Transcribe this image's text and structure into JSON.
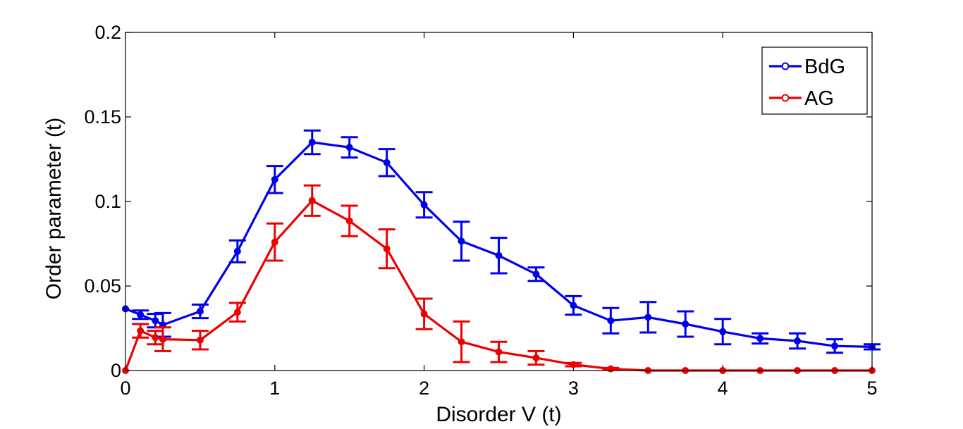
{
  "chart_data": {
    "type": "line",
    "title": "",
    "xlabel": "Disorder V (t)",
    "ylabel": "Order parameter (t)",
    "xlim": [
      0,
      5
    ],
    "ylim": [
      0,
      0.2
    ],
    "xticks": [
      0,
      1,
      2,
      3,
      4,
      5
    ],
    "xtick_labels": [
      "0",
      "1",
      "2",
      "3",
      "4",
      "5"
    ],
    "yticks": [
      0,
      0.05,
      0.1,
      0.15,
      0.2
    ],
    "ytick_labels": [
      "0",
      "0.05",
      "0.1",
      "0.15",
      "0.2"
    ],
    "grid": false,
    "legend_position": "top-right",
    "x": [
      0,
      0.1,
      0.2,
      0.25,
      0.5,
      0.75,
      1.0,
      1.25,
      1.5,
      1.75,
      2.0,
      2.25,
      2.5,
      2.75,
      3.0,
      3.25,
      3.5,
      3.75,
      4.0,
      4.25,
      4.5,
      4.75,
      5.0
    ],
    "series": [
      {
        "name": "BdG",
        "color": "#0000ee",
        "values": [
          0.0365,
          0.033,
          0.0295,
          0.027,
          0.035,
          0.0705,
          0.113,
          0.135,
          0.132,
          0.123,
          0.098,
          0.0765,
          0.068,
          0.057,
          0.0385,
          0.0295,
          0.0315,
          0.0275,
          0.023,
          0.019,
          0.0175,
          0.0145,
          0.014
        ],
        "errors": [
          0,
          0.0025,
          0.004,
          0.007,
          0.004,
          0.0065,
          0.008,
          0.007,
          0.006,
          0.008,
          0.0075,
          0.0115,
          0.0105,
          0.004,
          0.0055,
          0.0075,
          0.009,
          0.0075,
          0.0075,
          0.003,
          0.0045,
          0.004,
          0.0015
        ]
      },
      {
        "name": "AG",
        "color": "#ee0000",
        "values": [
          0,
          0.0235,
          0.0195,
          0.0185,
          0.018,
          0.0345,
          0.076,
          0.1005,
          0.0885,
          0.072,
          0.0335,
          0.017,
          0.011,
          0.0075,
          0.0035,
          0.001,
          0,
          0,
          0,
          0,
          0,
          0,
          0
        ],
        "errors": [
          0,
          0.004,
          0.004,
          0.007,
          0.0055,
          0.0055,
          0.011,
          0.009,
          0.009,
          0.0115,
          0.009,
          0.012,
          0.006,
          0.004,
          0.001,
          0.0005,
          0,
          0,
          0,
          0,
          0,
          0,
          0
        ]
      }
    ]
  }
}
